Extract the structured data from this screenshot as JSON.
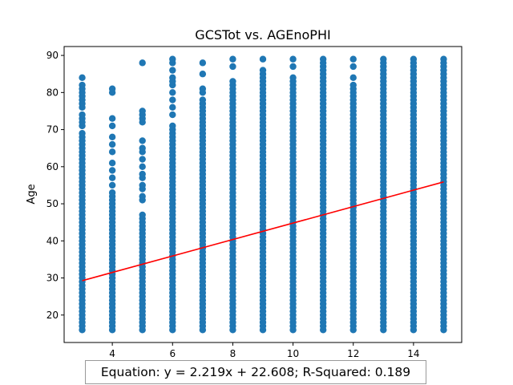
{
  "chart_data": {
    "type": "scatter",
    "title": "GCSTot vs. AGEnoPHI",
    "xlabel": "GCSTot",
    "ylabel": "Age",
    "xlim": [
      2.4,
      15.6
    ],
    "ylim": [
      12.6,
      92.4
    ],
    "x_ticks": [
      4,
      6,
      8,
      10,
      12,
      14
    ],
    "y_ticks": [
      20,
      30,
      40,
      50,
      60,
      70,
      80,
      90
    ],
    "grid": false,
    "marker_color": "#1f77b4",
    "columns": [
      {
        "x": 3,
        "dense": [
          16,
          69
        ],
        "extra": [
          71,
          72,
          73,
          74,
          76,
          77,
          78,
          79,
          80,
          81,
          82,
          84
        ]
      },
      {
        "x": 4,
        "dense": [
          16,
          53
        ],
        "extra": [
          55,
          57,
          59,
          61,
          64,
          66,
          68,
          71,
          73,
          80,
          81
        ]
      },
      {
        "x": 5,
        "dense": [
          16,
          47
        ],
        "extra": [
          51,
          52,
          54,
          55,
          57,
          58,
          60,
          62,
          64,
          65,
          67,
          72,
          73,
          74,
          75,
          88
        ]
      },
      {
        "x": 6,
        "dense": [
          16,
          71
        ],
        "extra": [
          74,
          76,
          78,
          80,
          82,
          83,
          84,
          86,
          88,
          89
        ]
      },
      {
        "x": 7,
        "dense": [
          16,
          78
        ],
        "extra": [
          80,
          81,
          85,
          88
        ]
      },
      {
        "x": 8,
        "dense": [
          16,
          83
        ],
        "extra": [
          87,
          89
        ]
      },
      {
        "x": 9,
        "dense": [
          16,
          86
        ],
        "extra": [
          89
        ]
      },
      {
        "x": 10,
        "dense": [
          16,
          84
        ],
        "extra": [
          87,
          89
        ]
      },
      {
        "x": 11,
        "dense": [
          16,
          89
        ],
        "extra": []
      },
      {
        "x": 12,
        "dense": [
          16,
          82
        ],
        "extra": [
          84,
          87,
          89
        ]
      },
      {
        "x": 13,
        "dense": [
          16,
          89
        ],
        "extra": []
      },
      {
        "x": 14,
        "dense": [
          16,
          89
        ],
        "extra": []
      },
      {
        "x": 15,
        "dense": [
          16,
          89
        ],
        "extra": []
      }
    ],
    "regression": {
      "slope": 2.219,
      "intercept": 22.608,
      "x_range": [
        3,
        15
      ],
      "color": "#ff0000"
    }
  },
  "annotation": {
    "equation": "Equation: y = 2.219x + 22.608; R-Squared: 0.189"
  }
}
